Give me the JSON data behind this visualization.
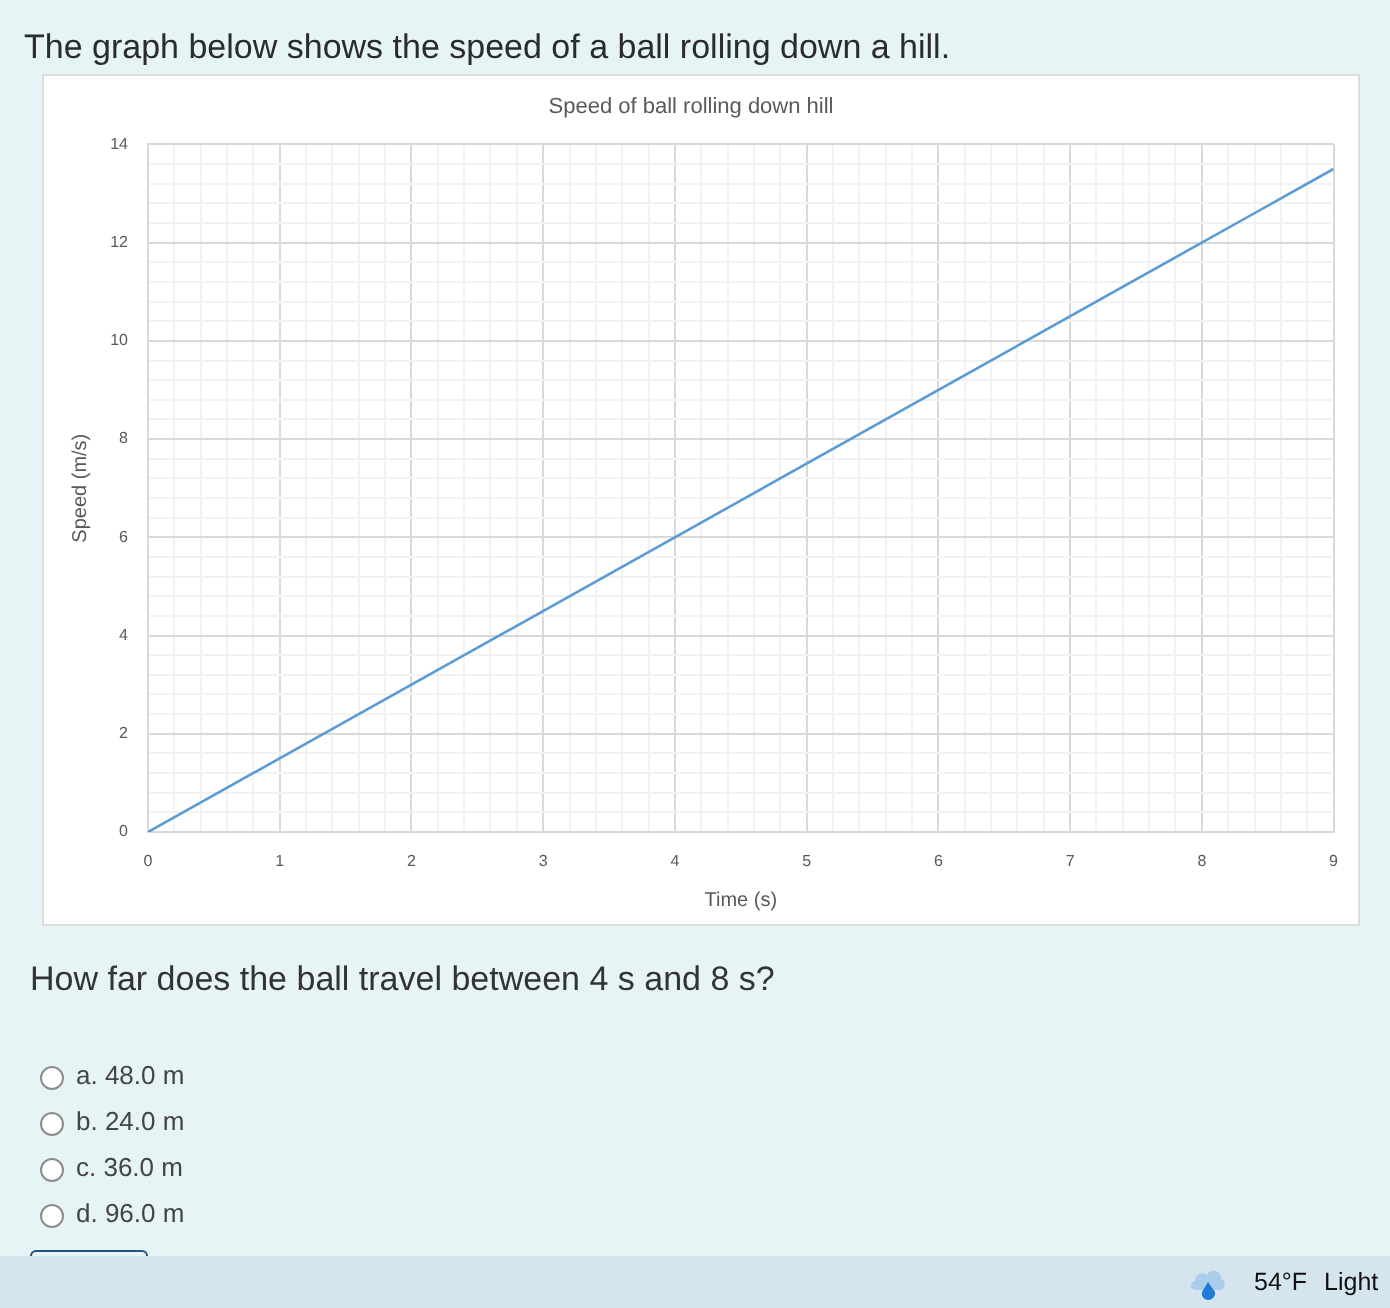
{
  "chart_data": {
    "type": "line",
    "title": "Speed of ball rolling down hill",
    "xlabel": "Time (s)",
    "ylabel": "Speed (m/s)",
    "x": [
      0,
      9
    ],
    "series": [
      {
        "color": "#5b9bd5",
        "values": [
          0,
          13.5
        ]
      }
    ],
    "xlim": [
      0,
      9
    ],
    "ylim": [
      0,
      14
    ],
    "xticks": [
      0,
      {
        "value": 0.2,
        "label": null
      },
      {
        "value": 0.4,
        "label": null
      },
      {
        "value": 0.6,
        "label": null
      },
      {
        "value": 0.8,
        "label": null
      },
      1,
      {
        "value": 1.2,
        "label": null
      },
      {
        "value": 1.4,
        "label": null
      },
      {
        "value": 1.6,
        "label": null
      },
      {
        "value": 1.8,
        "label": null
      },
      2,
      {
        "value": 2.2,
        "label": null
      },
      {
        "value": 2.4,
        "label": null
      },
      {
        "value": 2.6,
        "label": null
      },
      {
        "value": 2.8,
        "label": null
      },
      3,
      {
        "value": 3.2,
        "label": null
      },
      {
        "value": 3.4,
        "label": null
      },
      {
        "value": 3.6,
        "label": null
      },
      {
        "value": 3.8,
        "label": null
      },
      4,
      {
        "value": 4.2,
        "label": null
      },
      {
        "value": 4.4,
        "label": null
      },
      {
        "value": 4.6,
        "label": null
      },
      {
        "value": 4.8,
        "label": null
      },
      5,
      {
        "value": 5.2,
        "label": null
      },
      {
        "value": 5.4,
        "label": null
      },
      {
        "value": 5.6,
        "label": null
      },
      {
        "value": 5.8,
        "label": null
      },
      6,
      {
        "value": 6.2,
        "label": null
      },
      {
        "value": 6.4,
        "label": null
      },
      {
        "value": 6.6,
        "label": null
      },
      {
        "value": 6.8,
        "label": null
      },
      7,
      {
        "value": 7.2,
        "label": null
      },
      {
        "value": 7.4,
        "label": null
      },
      {
        "value": 7.6,
        "label": null
      },
      {
        "value": 7.8,
        "label": null
      },
      8,
      {
        "value": 8.2,
        "label": null
      },
      {
        "value": 8.4,
        "label": null
      },
      {
        "value": 8.6,
        "label": null
      },
      {
        "value": 8.8,
        "label": null
      },
      9
    ],
    "yticks": [
      0,
      {
        "value": 0.4,
        "label": null
      },
      {
        "value": 0.8,
        "label": null
      },
      {
        "value": 1.2,
        "label": null
      },
      {
        "value": 1.6,
        "label": null
      },
      2,
      {
        "value": 2.4,
        "label": null
      },
      {
        "value": 2.8,
        "label": null
      },
      {
        "value": 3.2,
        "label": null
      },
      {
        "value": 3.6,
        "label": null
      },
      4,
      {
        "value": 4.4,
        "label": null
      },
      {
        "value": 4.8,
        "label": null
      },
      {
        "value": 5.2,
        "label": null
      },
      {
        "value": 5.6,
        "label": null
      },
      6,
      {
        "value": 6.4,
        "label": null
      },
      {
        "value": 6.8,
        "label": null
      },
      {
        "value": 7.2,
        "label": null
      },
      {
        "value": 7.6,
        "label": null
      },
      8,
      {
        "value": 8.4,
        "label": null
      },
      {
        "value": 8.8,
        "label": null
      },
      {
        "value": 9.2,
        "label": null
      },
      {
        "value": 9.6,
        "label": null
      },
      10,
      {
        "value": 10.4,
        "label": null
      },
      {
        "value": 10.8,
        "label": null
      },
      {
        "value": 11.2,
        "label": null
      },
      {
        "value": 11.6,
        "label": null
      },
      12,
      {
        "value": 12.4,
        "label": null
      },
      {
        "value": 12.8,
        "label": null
      },
      {
        "value": 13.2,
        "label": null
      },
      {
        "value": 13.6,
        "label": null
      },
      14
    ],
    "grid": true,
    "legend": false,
    "marker": "none",
    "line_style": "solid",
    "annotations": [
      "The graph below shows the speed of a ball rolling down a hill.",
      "How far does the ball travel between 4 s and 8 s?",
      "a. 48.0 m",
      "b. 24.0 m",
      "c. 36.0 m",
      "d. 96.0 m",
      "54°F Light"
    ]
  }
}
